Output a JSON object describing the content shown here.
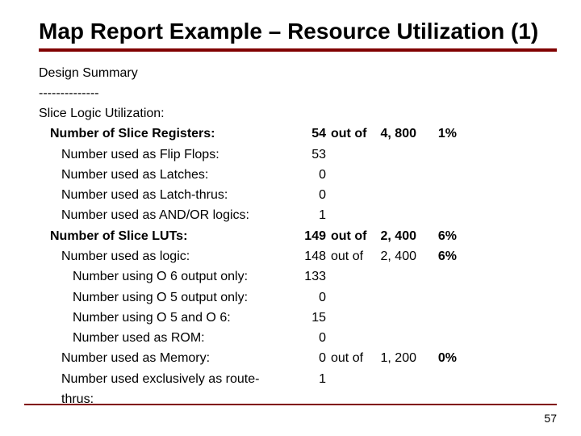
{
  "colors": {
    "title_rule": "#800000",
    "footer_rule": "#800000",
    "text": "#000000"
  },
  "title": "Map Report Example – Resource Utilization (1)",
  "design_summary": "Design Summary",
  "dashes": "--------------",
  "section_header": "Slice Logic Utilization:",
  "rows": [
    {
      "label": "Number of Slice Registers:",
      "indent": 1,
      "bold": true,
      "value": "54",
      "of": "out of",
      "total": "4, 800",
      "pct": "1%"
    },
    {
      "label": "Number used as Flip Flops:",
      "indent": 2,
      "bold": false,
      "value": "53"
    },
    {
      "label": "Number used as Latches:",
      "indent": 2,
      "bold": false,
      "value": "0"
    },
    {
      "label": "Number used as Latch-thrus:",
      "indent": 2,
      "bold": false,
      "value": "0"
    },
    {
      "label": "Number used as AND/OR logics:",
      "indent": 2,
      "bold": false,
      "value": "1"
    },
    {
      "label": "Number of Slice LUTs:",
      "indent": 1,
      "bold": true,
      "value": "149",
      "of": "out of",
      "total": "2, 400",
      "pct": "6%"
    },
    {
      "label": "Number used as logic:",
      "indent": 2,
      "bold": false,
      "value": "148",
      "of": "out of",
      "total": "2, 400",
      "pct": "6%"
    },
    {
      "label": "Number using O 6 output only:",
      "indent": 3,
      "bold": false,
      "value": "133"
    },
    {
      "label": "Number using O 5 output only:",
      "indent": 3,
      "bold": false,
      "value": "0"
    },
    {
      "label": "Number using O 5 and O 6:",
      "indent": 3,
      "bold": false,
      "value": "15"
    },
    {
      "label": "Number used as ROM:",
      "indent": 3,
      "bold": false,
      "value": "0"
    },
    {
      "label": "Number used as Memory:",
      "indent": 2,
      "bold": false,
      "value": "0",
      "of": "out of",
      "total": "1, 200",
      "pct": "0%"
    },
    {
      "label": "Number used exclusively as route-thrus:",
      "indent": 2,
      "bold": false,
      "value": "1"
    }
  ],
  "page_number": "57"
}
